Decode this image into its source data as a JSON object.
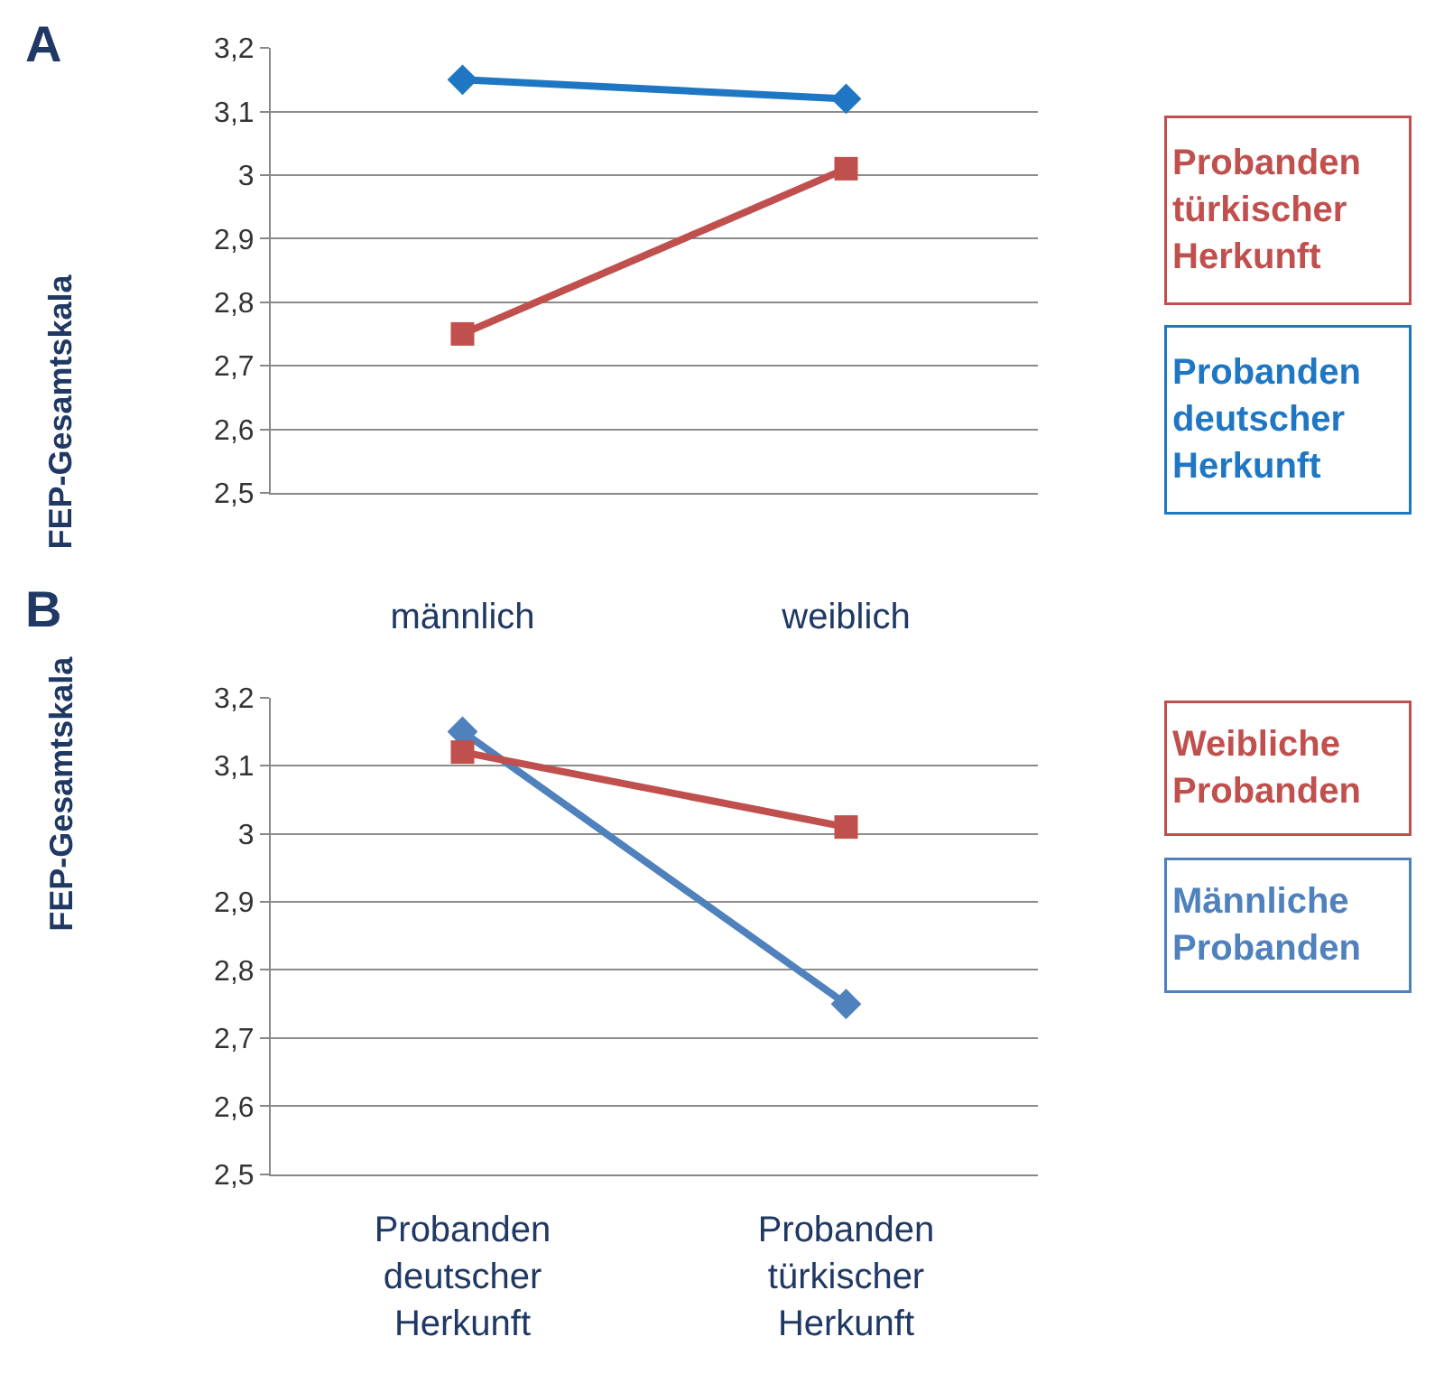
{
  "chart_data": [
    {
      "type": "line",
      "title": "A",
      "ylabel": "FEP-Gesamtskala",
      "categories": [
        "männlich",
        "weiblich"
      ],
      "series": [
        {
          "name": "Probanden\ntürkischer\nHerkunft",
          "color": "#c0504d",
          "marker": "square",
          "values": [
            2.75,
            3.01
          ]
        },
        {
          "name": "Probanden\ndeutscher\nHerkunft",
          "color": "#1f77c4",
          "marker": "diamond",
          "values": [
            3.15,
            3.12
          ]
        }
      ],
      "ylim": [
        2.5,
        3.2
      ],
      "yticks": [
        {
          "value": 2.5,
          "label": "2,5"
        },
        {
          "value": 2.6,
          "label": "2,6"
        },
        {
          "value": 2.7,
          "label": "2,7"
        },
        {
          "value": 2.8,
          "label": "2,8"
        },
        {
          "value": 2.9,
          "label": "2,9"
        },
        3,
        {
          "value": 3.1,
          "label": "3,1"
        },
        {
          "value": 3.2,
          "label": "3,2"
        }
      ],
      "grid": "y",
      "legend": "right"
    },
    {
      "type": "line",
      "title": "B",
      "ylabel": "FEP-Gesamtskala",
      "categories": [
        "Probanden\ndeutscher\nHerkunft",
        "Probanden\ntürkischer\nHerkunft"
      ],
      "series": [
        {
          "name": "Weibliche\nProbanden",
          "color": "#c0504d",
          "marker": "square",
          "values": [
            3.12,
            3.01
          ]
        },
        {
          "name": "Männliche\nProbanden",
          "color": "#4f81bd",
          "marker": "diamond",
          "values": [
            3.15,
            2.75
          ]
        }
      ],
      "ylim": [
        2.5,
        3.2
      ],
      "yticks": [
        {
          "value": 2.5,
          "label": "2,5"
        },
        {
          "value": 2.6,
          "label": "2,6"
        },
        {
          "value": 2.7,
          "label": "2,7"
        },
        {
          "value": 2.8,
          "label": "2,8"
        },
        {
          "value": 2.9,
          "label": "2,9"
        },
        3,
        {
          "value": 3.1,
          "label": "3,1"
        },
        {
          "value": 3.2,
          "label": "3,2"
        }
      ],
      "grid": "y",
      "legend": "right"
    }
  ]
}
